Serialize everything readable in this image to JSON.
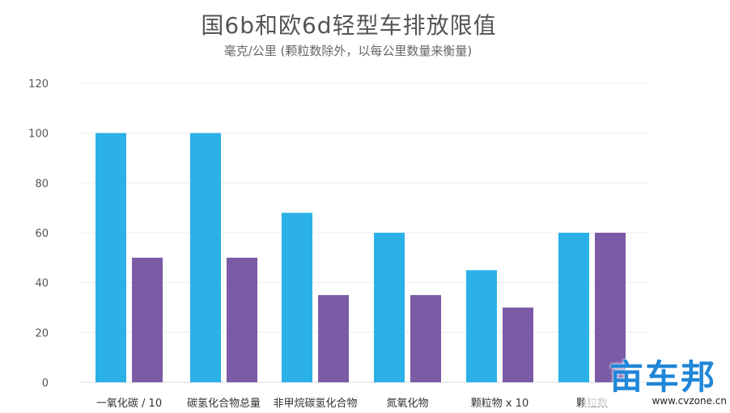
{
  "chart_data": {
    "type": "bar",
    "title": "国6b和欧6d轻型车排放限值",
    "subtitle": "毫克/公里 (颗粒数除外，以每公里数量来衡量)",
    "categories": [
      "一氧化碳 / 10",
      "碳氢化合物总量",
      "非甲烷碳氢化合物",
      "氮氧化物",
      "颗粒物 x 10",
      "颗粒数"
    ],
    "series": [
      {
        "values": [
          100,
          100,
          68,
          60,
          45,
          60
        ],
        "color": "#2bb1e8"
      },
      {
        "values": [
          50,
          50,
          35,
          35,
          30,
          60
        ],
        "color": "#7b5aa6"
      }
    ],
    "ylim": [
      0,
      120
    ],
    "yticks": [
      0,
      20,
      40,
      60,
      80,
      100,
      120
    ],
    "grid": true
  },
  "watermark": {
    "logo_text": "亩车邦",
    "url": "www.cvzone.cn"
  }
}
